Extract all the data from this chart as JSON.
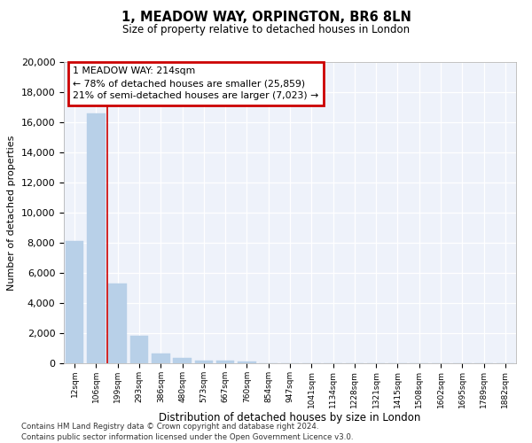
{
  "title": "1, MEADOW WAY, ORPINGTON, BR6 8LN",
  "subtitle": "Size of property relative to detached houses in London",
  "xlabel": "Distribution of detached houses by size in London",
  "ylabel": "Number of detached properties",
  "categories": [
    "12sqm",
    "106sqm",
    "199sqm",
    "293sqm",
    "386sqm",
    "480sqm",
    "573sqm",
    "667sqm",
    "760sqm",
    "854sqm",
    "947sqm",
    "1041sqm",
    "1134sqm",
    "1228sqm",
    "1321sqm",
    "1415sqm",
    "1508sqm",
    "1602sqm",
    "1695sqm",
    "1789sqm",
    "1882sqm"
  ],
  "values": [
    8100,
    16600,
    5300,
    1800,
    650,
    330,
    190,
    150,
    110,
    0,
    0,
    0,
    0,
    0,
    0,
    0,
    0,
    0,
    0,
    0,
    0
  ],
  "bar_color": "#b8d0e8",
  "annotation_text": "1 MEADOW WAY: 214sqm\n← 78% of detached houses are smaller (25,859)\n21% of semi-detached houses are larger (7,023) →",
  "annotation_box_color": "#cc0000",
  "vline_x": 2,
  "ylim": [
    0,
    20000
  ],
  "yticks": [
    0,
    2000,
    4000,
    6000,
    8000,
    10000,
    12000,
    14000,
    16000,
    18000,
    20000
  ],
  "bg_color": "#eef2fa",
  "footer1": "Contains HM Land Registry data © Crown copyright and database right 2024.",
  "footer2": "Contains public sector information licensed under the Open Government Licence v3.0."
}
